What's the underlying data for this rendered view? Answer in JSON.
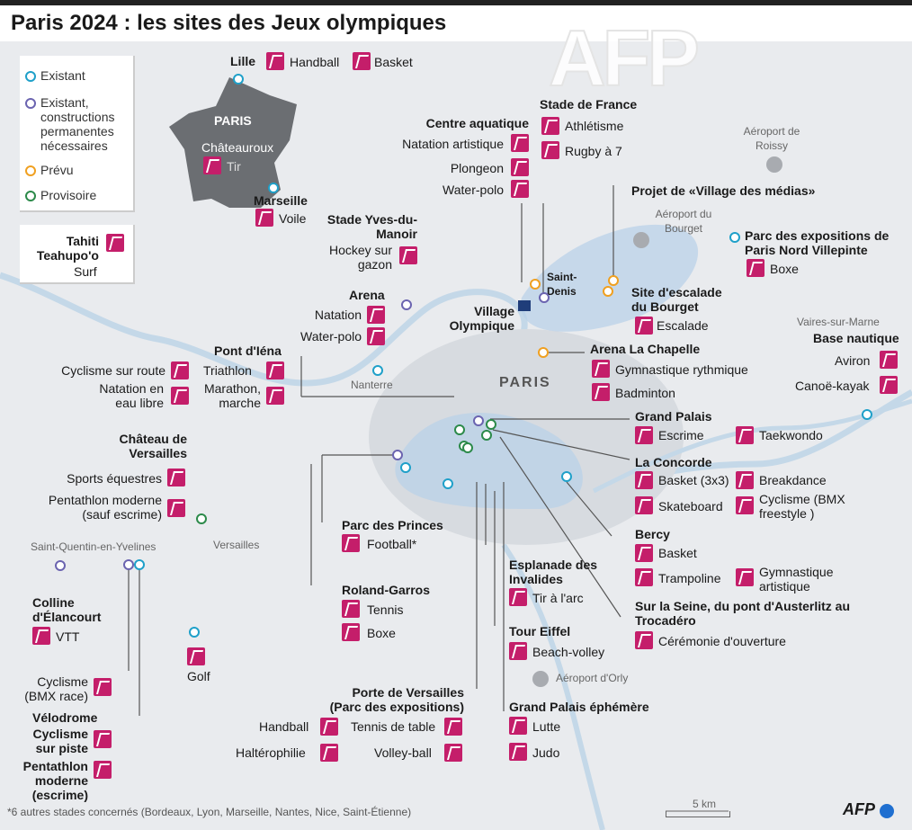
{
  "title": "Paris 2024 : les sites des Jeux olympiques",
  "watermark": "AFP",
  "colors": {
    "existant": "#1fa0c9",
    "existant_constructions": "#6b64b0",
    "prevu": "#f0a020",
    "provisoire": "#2c8a4a",
    "sport_icon": "#c41e6a"
  },
  "legend": {
    "existant": "Existant",
    "existant_constructions": "Existant, constructions permanentes nécessaires",
    "prevu": "Prévu",
    "provisoire": "Provisoire"
  },
  "tahiti": {
    "name": "Tahiti Teahupo'o",
    "sport": "Surf"
  },
  "france": {
    "paris": "PARIS",
    "lille": "Lille",
    "chateauroux": "Châteauroux",
    "marseille": "Marseille",
    "lille_sports": [
      "Handball",
      "Basket"
    ],
    "chateauroux_sport": "Tir",
    "marseille_sport": "Voile"
  },
  "places": {
    "paris": "PARIS",
    "nanterre": "Nanterre",
    "versailles": "Versailles",
    "sqy": "Saint-Quentin-en-Yvelines",
    "roissy": "Aéroport de Roissy",
    "bourget": "Aéroport du Bourget",
    "orly": "Aéroport d'Orly",
    "vaires": "Vaires-sur-Marne",
    "saint_denis": "Saint-Denis",
    "village": "Village Olympique"
  },
  "venues": {
    "stade_de_france": {
      "name": "Stade de France",
      "sports": [
        "Athlétisme",
        "Rugby à 7"
      ]
    },
    "centre_aquatique": {
      "name": "Centre aquatique",
      "sports": [
        "Natation artistique",
        "Plongeon",
        "Water-polo"
      ]
    },
    "village_medias": {
      "name": "Projet de «Village des médias»"
    },
    "yves_du_manoir": {
      "name": "Stade Yves-du-Manoir",
      "sports": [
        "Hockey sur gazon"
      ]
    },
    "arena": {
      "name": "Arena",
      "sports": [
        "Natation",
        "Water-polo"
      ]
    },
    "villepinte": {
      "name": "Parc des expositions de Paris Nord Villepinte",
      "sports": [
        "Boxe"
      ]
    },
    "escalade": {
      "name": "Site d'escalade du Bourget",
      "sports": [
        "Escalade"
      ]
    },
    "vaires": {
      "name": "Base nautique",
      "sports": [
        "Aviron",
        "Canoë-kayak"
      ]
    },
    "la_chapelle": {
      "name": "Arena La Chapelle",
      "sports": [
        "Gymnastique rythmique",
        "Badminton"
      ]
    },
    "iena": {
      "name": "Pont d'Iéna",
      "sports": [
        "Triathlon",
        "Marathon, marche"
      ],
      "left": [
        "Cyclisme sur route",
        "Natation en eau libre"
      ]
    },
    "grand_palais": {
      "name": "Grand Palais",
      "sports": [
        "Escrime",
        "Taekwondo"
      ]
    },
    "concorde": {
      "name": "La Concorde",
      "sports": [
        "Basket (3x3)",
        "Breakdance",
        "Skateboard",
        "Cyclisme (BMX freestyle )"
      ]
    },
    "bercy": {
      "name": "Bercy",
      "sports": [
        "Basket",
        "Trampoline",
        "Gymnastique artistique"
      ]
    },
    "seine": {
      "name": "Sur la Seine, du pont d'Austerlitz au Trocadéro",
      "sports": [
        "Cérémonie d'ouverture"
      ]
    },
    "versailles": {
      "name": "Château de Versailles",
      "sports": [
        "Sports équestres",
        "Pentathlon moderne (sauf escrime)"
      ]
    },
    "princes": {
      "name": "Parc des Princes",
      "sports": [
        "Football*"
      ]
    },
    "roland": {
      "name": "Roland-Garros",
      "sports": [
        "Tennis",
        "Boxe"
      ]
    },
    "invalides": {
      "name": "Esplanade des Invalides",
      "sports": [
        "Tir à l'arc"
      ]
    },
    "eiffel": {
      "name": "Tour Eiffel",
      "sports": [
        "Beach-volley"
      ]
    },
    "elancourt": {
      "name": "Colline d'Élancourt",
      "sports": [
        "VTT"
      ]
    },
    "golf": {
      "name": "Golf"
    },
    "bmx": {
      "name": "Cyclisme (BMX race)"
    },
    "velodrome": {
      "name": "Vélodrome",
      "sports": [
        "Cyclisme sur piste",
        "Pentathlon moderne (escrime)"
      ]
    },
    "porte_versailles": {
      "name": "Porte de Versailles (Parc des expositions)",
      "sports": [
        "Handball",
        "Tennis de table",
        "Haltérophilie",
        "Volley-ball"
      ]
    },
    "gp_ephemere": {
      "name": "Grand Palais éphémère",
      "sports": [
        "Lutte",
        "Judo"
      ]
    }
  },
  "footnote": "*6 autres stades concernés (Bordeaux, Lyon, Marseille, Nantes, Nice, Saint-Étienne)",
  "scale": "5 km",
  "credit": "AFP"
}
